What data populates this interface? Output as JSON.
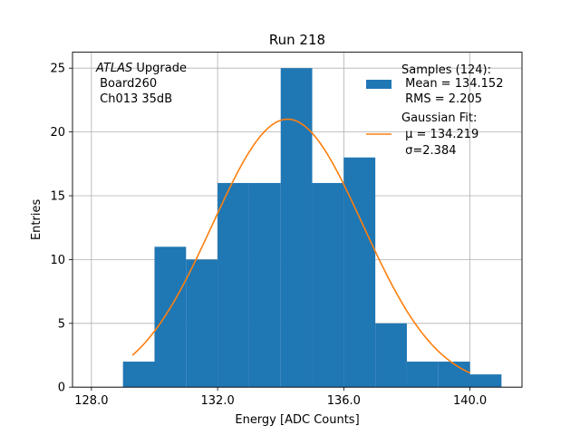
{
  "chart_data": {
    "type": "bar",
    "title": "Run 218",
    "xlabel": "Energy [ADC Counts]",
    "ylabel": "Entries",
    "xlim": [
      127.4,
      141.65
    ],
    "ylim": [
      0,
      26.25
    ],
    "grid": true,
    "bin_width": 1,
    "bins": [
      {
        "x0": 129,
        "x1": 130,
        "count": 2
      },
      {
        "x0": 130,
        "x1": 131,
        "count": 11
      },
      {
        "x0": 131,
        "x1": 132,
        "count": 10
      },
      {
        "x0": 132,
        "x1": 133,
        "count": 16
      },
      {
        "x0": 133,
        "x1": 134,
        "count": 16
      },
      {
        "x0": 134,
        "x1": 135,
        "count": 25
      },
      {
        "x0": 135,
        "x1": 136,
        "count": 16
      },
      {
        "x0": 136,
        "x1": 137,
        "count": 18
      },
      {
        "x0": 137,
        "x1": 138,
        "count": 5
      },
      {
        "x0": 138,
        "x1": 139,
        "count": 2
      },
      {
        "x0": 139,
        "x1": 140,
        "count": 2
      },
      {
        "x0": 140,
        "x1": 141,
        "count": 1
      }
    ],
    "x_ticks": [
      128,
      132,
      136,
      140
    ],
    "x_tick_labels": [
      "128.0",
      "132.0",
      "136.0",
      "140.0"
    ],
    "y_ticks": [
      0,
      5,
      10,
      15,
      20,
      25
    ],
    "y_tick_labels": [
      "0",
      "5",
      "10",
      "15",
      "20",
      "25"
    ],
    "fit": {
      "amplitude": 21.0,
      "mu": 134.219,
      "sigma": 2.384,
      "x_range": [
        129.3,
        140.0
      ]
    },
    "legend_placement": "upper-right",
    "legend": {
      "samples_label_lines": [
        "Samples (124):",
        " Mean = 134.152",
        " RMS = 2.205"
      ],
      "fit_label_lines": [
        "Gaussian Fit:",
        " μ = 134.219",
        " σ=2.384"
      ]
    },
    "annotation": {
      "atlas": "ATLAS",
      "upgrade": " Upgrade",
      "line2": " Board260",
      "line3": " Ch013 35dB"
    },
    "colors": {
      "bars": "#1f77b4",
      "fit": "#ff7f0e",
      "grid": "#b0b0b0"
    }
  }
}
